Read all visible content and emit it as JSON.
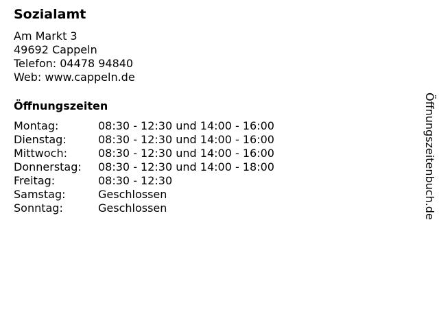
{
  "title": "Sozialamt",
  "address": {
    "street": "Am Markt 3",
    "city": "49692 Cappeln",
    "phone": "Telefon: 04478 94840",
    "web": "Web: www.cappeln.de"
  },
  "hours_title": "Öffnungszeiten",
  "hours": [
    {
      "day": "Montag:",
      "time": "08:30 - 12:30 und 14:00 - 16:00"
    },
    {
      "day": "Dienstag:",
      "time": "08:30 - 12:30 und 14:00 - 16:00"
    },
    {
      "day": "Mittwoch:",
      "time": "08:30 - 12:30 und 14:00 - 16:00"
    },
    {
      "day": "Donnerstag:",
      "time": "08:30 - 12:30 und 14:00 - 18:00"
    },
    {
      "day": "Freitag:",
      "time": "08:30 - 12:30"
    },
    {
      "day": "Samstag:",
      "time": "Geschlossen"
    },
    {
      "day": "Sonntag:",
      "time": "Geschlossen"
    }
  ],
  "side_label": "Öffnungszeitenbuch.de"
}
